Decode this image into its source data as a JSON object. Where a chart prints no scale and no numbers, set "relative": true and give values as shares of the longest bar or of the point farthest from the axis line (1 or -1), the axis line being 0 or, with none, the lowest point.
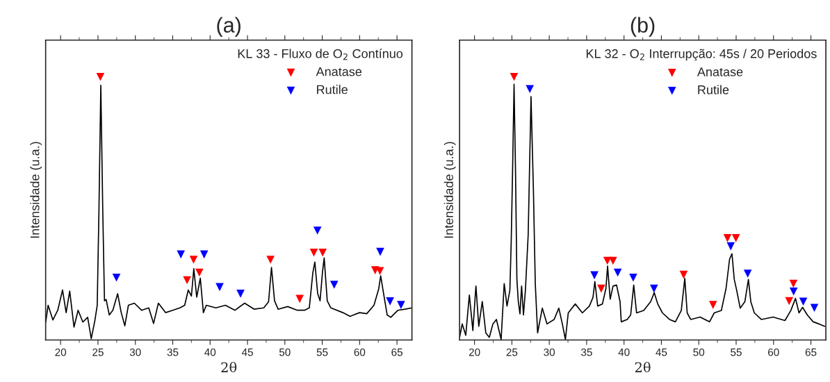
{
  "chart_data": [
    {
      "type": "line",
      "title": "(a)",
      "xlabel": "2θ",
      "ylabel": "Intensidade (u.a.)",
      "relative": true,
      "xlim": [
        18,
        67
      ],
      "xticks": [
        20,
        25,
        30,
        35,
        40,
        45,
        50,
        55,
        60,
        65
      ],
      "legend": "top right",
      "legend_title": "KL 33 - Fluxo de O$_{2}$ Contínuo",
      "series": [
        {
          "color": "#000000",
          "line_style": "solid",
          "x": [
            18.01,
            18.33,
            18.97,
            19.62,
            20.26,
            20.74,
            21.22,
            21.79,
            22.34,
            22.98,
            23.62,
            24.1,
            24.58,
            24.9,
            25.13,
            25.38,
            25.64,
            25.87,
            26.09,
            26.51,
            26.99,
            27.63,
            28.11,
            28.59,
            29.07,
            29.87,
            30.83,
            31.79,
            32.44,
            33.08,
            34.04,
            35.0,
            35.96,
            36.6,
            37.08,
            37.5,
            37.82,
            38.21,
            38.69,
            39.1,
            39.49,
            40.77,
            42.05,
            43.33,
            44.62,
            45.9,
            47.18,
            47.82,
            48.21,
            48.62,
            49.1,
            50.38,
            51.67,
            52.63,
            53.27,
            53.75,
            54.01,
            54.39,
            54.71,
            55.03,
            55.26,
            55.67,
            56.15,
            57.76,
            58.72,
            60.0,
            60.96,
            61.92,
            62.56,
            62.82,
            63.21,
            63.69,
            64.17,
            65.13,
            66.09,
            66.99
          ],
          "values": [
            0.068,
            0.132,
            0.076,
            0.113,
            0.19,
            0.104,
            0.186,
            0.049,
            0.113,
            0.068,
            0.086,
            0.005,
            0.073,
            0.132,
            0.493,
            0.968,
            0.493,
            0.149,
            0.154,
            0.095,
            0.113,
            0.176,
            0.104,
            0.054,
            0.132,
            0.14,
            0.113,
            0.122,
            0.063,
            0.14,
            0.104,
            0.113,
            0.122,
            0.132,
            0.19,
            0.167,
            0.271,
            0.163,
            0.235,
            0.104,
            0.132,
            0.122,
            0.132,
            0.113,
            0.14,
            0.117,
            0.122,
            0.145,
            0.276,
            0.149,
            0.117,
            0.127,
            0.113,
            0.113,
            0.122,
            0.257,
            0.296,
            0.176,
            0.149,
            0.257,
            0.312,
            0.149,
            0.122,
            0.104,
            0.09,
            0.104,
            0.1,
            0.132,
            0.195,
            0.244,
            0.176,
            0.095,
            0.086,
            0.113,
            0.117,
            0.122
          ]
        },
        {
          "type": "scatter",
          "name": "Anatase",
          "color": "#ff0000",
          "marker": "triangle",
          "x": [
            25.32,
            36.92,
            37.79,
            38.56,
            48.08,
            51.99,
            53.88,
            55.06,
            62.08,
            62.72
          ],
          "values": [
            1.0,
            0.227,
            0.305,
            0.256,
            0.305,
            0.156,
            0.332,
            0.332,
            0.265,
            0.262
          ]
        },
        {
          "type": "scatter",
          "name": "Rutile",
          "color": "#0000ff",
          "marker": "triangle",
          "x": [
            27.47,
            36.09,
            39.2,
            41.28,
            44.07,
            54.36,
            56.6,
            62.76,
            64.07,
            65.54
          ],
          "values": [
            0.237,
            0.325,
            0.325,
            0.201,
            0.176,
            0.416,
            0.21,
            0.335,
            0.147,
            0.133
          ]
        }
      ]
    },
    {
      "type": "line",
      "title": "(b)",
      "xlabel": "2θ",
      "ylabel": "Intensidade (u.a.)",
      "relative": true,
      "xlim": [
        18,
        67
      ],
      "xticks": [
        20,
        25,
        30,
        35,
        40,
        45,
        50,
        55,
        60,
        65
      ],
      "legend": "top right",
      "legend_title": "KL 32 - O$_{2}$ Interrupção: 45s / 20 Periodos",
      "series": [
        {
          "color": "#000000",
          "line_style": "solid",
          "x": [
            18.0,
            18.36,
            18.83,
            19.31,
            19.78,
            20.19,
            20.57,
            21.04,
            21.51,
            21.98,
            22.46,
            22.93,
            23.56,
            23.97,
            24.35,
            24.73,
            24.91,
            25.1,
            25.29,
            25.48,
            25.67,
            25.86,
            26.08,
            26.3,
            26.55,
            26.81,
            27.18,
            27.56,
            27.88,
            28.13,
            28.44,
            29.07,
            29.7,
            30.65,
            31.28,
            31.75,
            32.16,
            32.54,
            33.48,
            34.43,
            35.37,
            35.85,
            36.1,
            36.48,
            37.11,
            37.58,
            37.8,
            38.15,
            38.53,
            39.0,
            39.47,
            39.63,
            40.42,
            40.89,
            41.3,
            41.68,
            42.63,
            43.57,
            44.04,
            44.51,
            45.14,
            46.09,
            46.87,
            47.66,
            48.13,
            48.45,
            48.92,
            50.18,
            51.44,
            52.07,
            53.02,
            53.65,
            54.12,
            54.44,
            54.75,
            55.07,
            55.54,
            56.17,
            56.64,
            56.96,
            57.43,
            58.37,
            59.95,
            61.53,
            62.31,
            62.94,
            63.41,
            63.89,
            64.52,
            65.31,
            66.09,
            66.82
          ],
          "values": [
            0.01,
            0.061,
            0.018,
            0.171,
            0.036,
            0.205,
            0.052,
            0.146,
            0.027,
            0.01,
            0.061,
            0.078,
            0.002,
            0.214,
            0.129,
            0.189,
            0.374,
            0.654,
            0.972,
            0.654,
            0.23,
            0.146,
            0.099,
            0.205,
            0.095,
            0.189,
            0.4,
            0.925,
            0.57,
            0.214,
            0.027,
            0.121,
            0.061,
            0.078,
            0.121,
            0.061,
            0.002,
            0.103,
            0.137,
            0.103,
            0.129,
            0.162,
            0.222,
            0.129,
            0.137,
            0.196,
            0.281,
            0.155,
            0.205,
            0.209,
            0.146,
            0.069,
            0.078,
            0.095,
            0.209,
            0.103,
            0.112,
            0.146,
            0.18,
            0.137,
            0.103,
            0.078,
            0.069,
            0.112,
            0.234,
            0.103,
            0.078,
            0.087,
            0.069,
            0.103,
            0.112,
            0.196,
            0.307,
            0.328,
            0.23,
            0.189,
            0.121,
            0.146,
            0.23,
            0.146,
            0.103,
            0.078,
            0.087,
            0.074,
            0.112,
            0.158,
            0.103,
            0.124,
            0.095,
            0.069,
            0.061,
            0.052
          ]
        },
        {
          "type": "scatter",
          "name": "Anatase",
          "color": "#ff0000",
          "marker": "triangle",
          "x": [
            25.29,
            36.95,
            37.77,
            38.53,
            47.98,
            51.91,
            53.84,
            54.97,
            62.09,
            62.66
          ],
          "values": [
            1.0,
            0.195,
            0.301,
            0.301,
            0.248,
            0.133,
            0.387,
            0.387,
            0.148,
            0.214
          ]
        },
        {
          "type": "scatter",
          "name": "Rutile",
          "color": "#0000ff",
          "marker": "triangle",
          "x": [
            27.4,
            36.04,
            39.16,
            41.23,
            44.01,
            54.28,
            56.55,
            62.69,
            63.98,
            65.46
          ],
          "values": [
            0.954,
            0.246,
            0.256,
            0.237,
            0.195,
            0.356,
            0.252,
            0.184,
            0.146,
            0.122
          ]
        }
      ]
    }
  ]
}
